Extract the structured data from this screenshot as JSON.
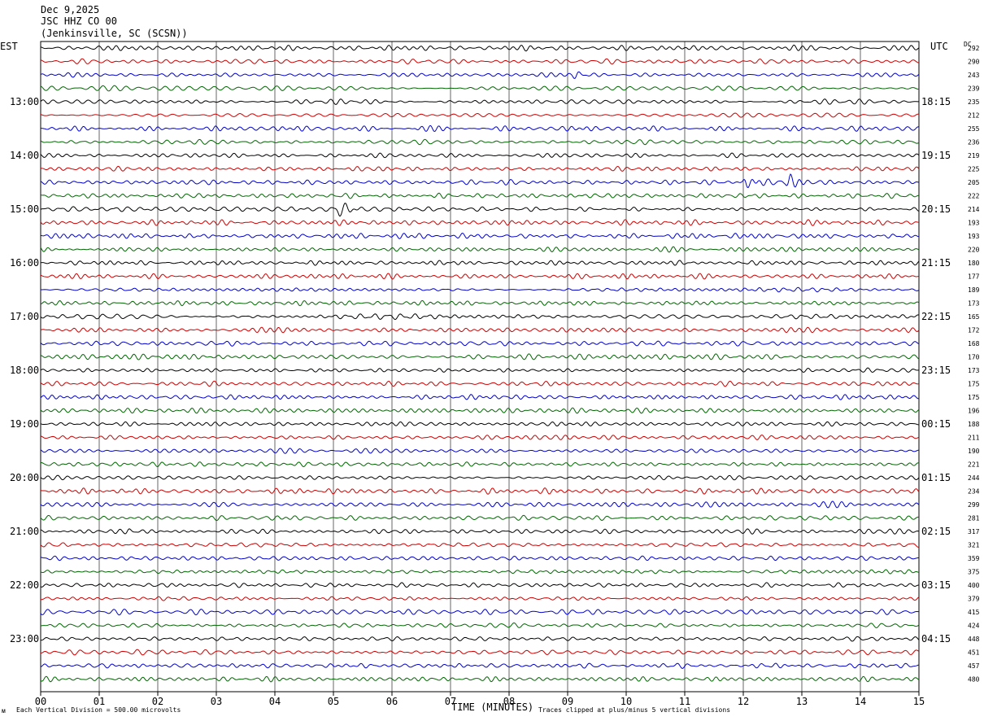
{
  "header": {
    "date": "Dec 9,2025",
    "station": "JSC HHZ CO 00",
    "location": "(Jenkinsville, SC (SCSN))"
  },
  "left_zone_label": "EST",
  "right_zone_label": "UTC",
  "dc_header": "DC",
  "footer": {
    "left": "Each Vertical Division = 500.00 microvolts",
    "center": "TIME (MINUTES)",
    "right": "Traces clipped at plus/minus 5 vertical divisions"
  },
  "colors": {
    "trace_cycle": [
      "#000000",
      "#cc0000",
      "#0000cc",
      "#006600"
    ],
    "grid": "#000000"
  },
  "chart_data": {
    "type": "line",
    "description_type": "helicorder",
    "x_ticks": [
      "00",
      "01",
      "02",
      "03",
      "04",
      "05",
      "06",
      "07",
      "08",
      "09",
      "10",
      "11",
      "12",
      "13",
      "14",
      "15"
    ],
    "xlim": [
      0,
      15
    ],
    "xlabel": "TIME (MINUTES)",
    "left_hour_labels": [
      "13:00",
      "14:00",
      "15:00",
      "16:00",
      "17:00",
      "18:00",
      "19:00",
      "20:00",
      "21:00",
      "22:00",
      "23:00"
    ],
    "right_hour_labels": [
      "18:15",
      "19:15",
      "20:15",
      "21:15",
      "22:15",
      "23:15",
      "00:15",
      "01:15",
      "02:15",
      "03:15",
      "04:15"
    ],
    "dc_values": [
      "292",
      "290",
      "243",
      "239",
      "235",
      "212",
      "255",
      "236",
      "219",
      "225",
      "205",
      "222",
      "214",
      "193",
      "193",
      "220",
      "180",
      "177",
      "189",
      "173",
      "165",
      "172",
      "168",
      "170",
      "173",
      "175",
      "175",
      "196",
      "188",
      "211",
      "190",
      "221",
      "244",
      "234",
      "299",
      "281",
      "317",
      "321",
      "359",
      "375",
      "400",
      "379",
      "415",
      "424",
      "448",
      "451",
      "457",
      "480"
    ],
    "events": [
      {
        "trace": 1,
        "minute": 10.8,
        "amplitude": 1.5
      },
      {
        "trace": 2,
        "minute": 9.15,
        "amplitude": 3.0
      },
      {
        "trace": 6,
        "minute": 6.4,
        "amplitude": 2.0
      },
      {
        "trace": 10,
        "minute": 12.05,
        "amplitude": 4.5
      },
      {
        "trace": 10,
        "minute": 12.8,
        "amplitude": 3.0
      },
      {
        "trace": 12,
        "minute": 5.1,
        "amplitude": 3.0
      },
      {
        "trace": 36,
        "minute": 1.5,
        "amplitude": 1.3
      }
    ]
  }
}
